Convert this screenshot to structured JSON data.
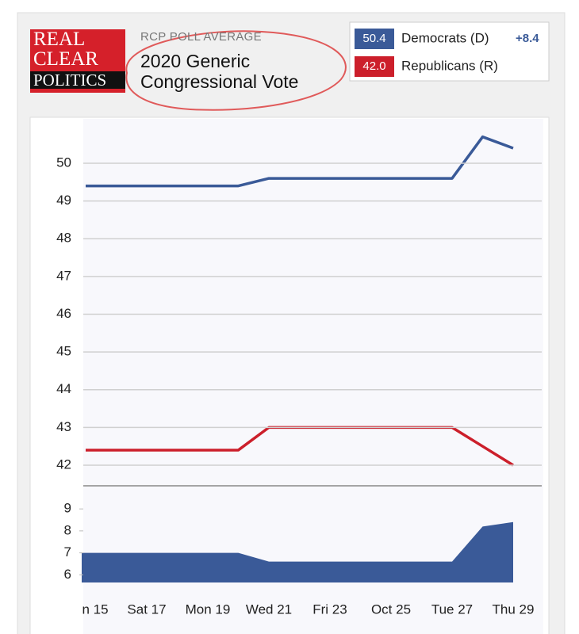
{
  "header": {
    "logo": [
      "REAL",
      "CLEAR",
      "POLITICS"
    ]
  },
  "chart_data": [
    {
      "type": "line",
      "subtitle": "RCP POLL AVERAGE",
      "title": "2020 Generic Congressional Vote",
      "series": [
        {
          "name": "Democrats (D)",
          "color": "#3a5a98",
          "values": [
            49.4,
            49.4,
            49.4,
            49.4,
            49.4,
            49.4,
            49.6,
            49.6,
            49.6,
            49.6,
            49.6,
            49.6,
            49.6,
            50.7,
            50.4
          ]
        },
        {
          "name": "Republicans (R)",
          "color": "#cc1f2b",
          "values": [
            42.4,
            42.4,
            42.4,
            42.4,
            42.4,
            42.4,
            43.0,
            43.0,
            43.0,
            43.0,
            43.0,
            43.0,
            43.0,
            42.5,
            42.0
          ]
        }
      ],
      "legend_values": [
        {
          "value": 50.4,
          "label": "50.4"
        },
        {
          "value": 42,
          "label": "42.0"
        }
      ],
      "spread": {
        "value": 8.4,
        "label": "+8.4"
      },
      "ylim": [
        41.5,
        51
      ],
      "yticks": [
        42,
        43,
        44,
        45,
        46,
        47,
        48,
        49,
        50
      ],
      "grid": true
    },
    {
      "type": "area",
      "categories": [
        "n 15",
        null,
        "Sat 17",
        null,
        "Mon 19",
        null,
        "Wed 21",
        null,
        "Fri 23",
        null,
        "Oct 25",
        null,
        "Tue 27",
        null,
        "Thu 29"
      ],
      "series": [
        {
          "color": "#3a5a98",
          "values": [
            7.0,
            7.0,
            7.0,
            7.0,
            7.0,
            7.0,
            6.6,
            6.6,
            6.6,
            6.6,
            6.6,
            6.6,
            6.6,
            8.2,
            8.4
          ]
        }
      ],
      "ylim": [
        5.65,
        9.8
      ],
      "yticks": [
        6,
        7,
        8,
        9
      ]
    }
  ]
}
